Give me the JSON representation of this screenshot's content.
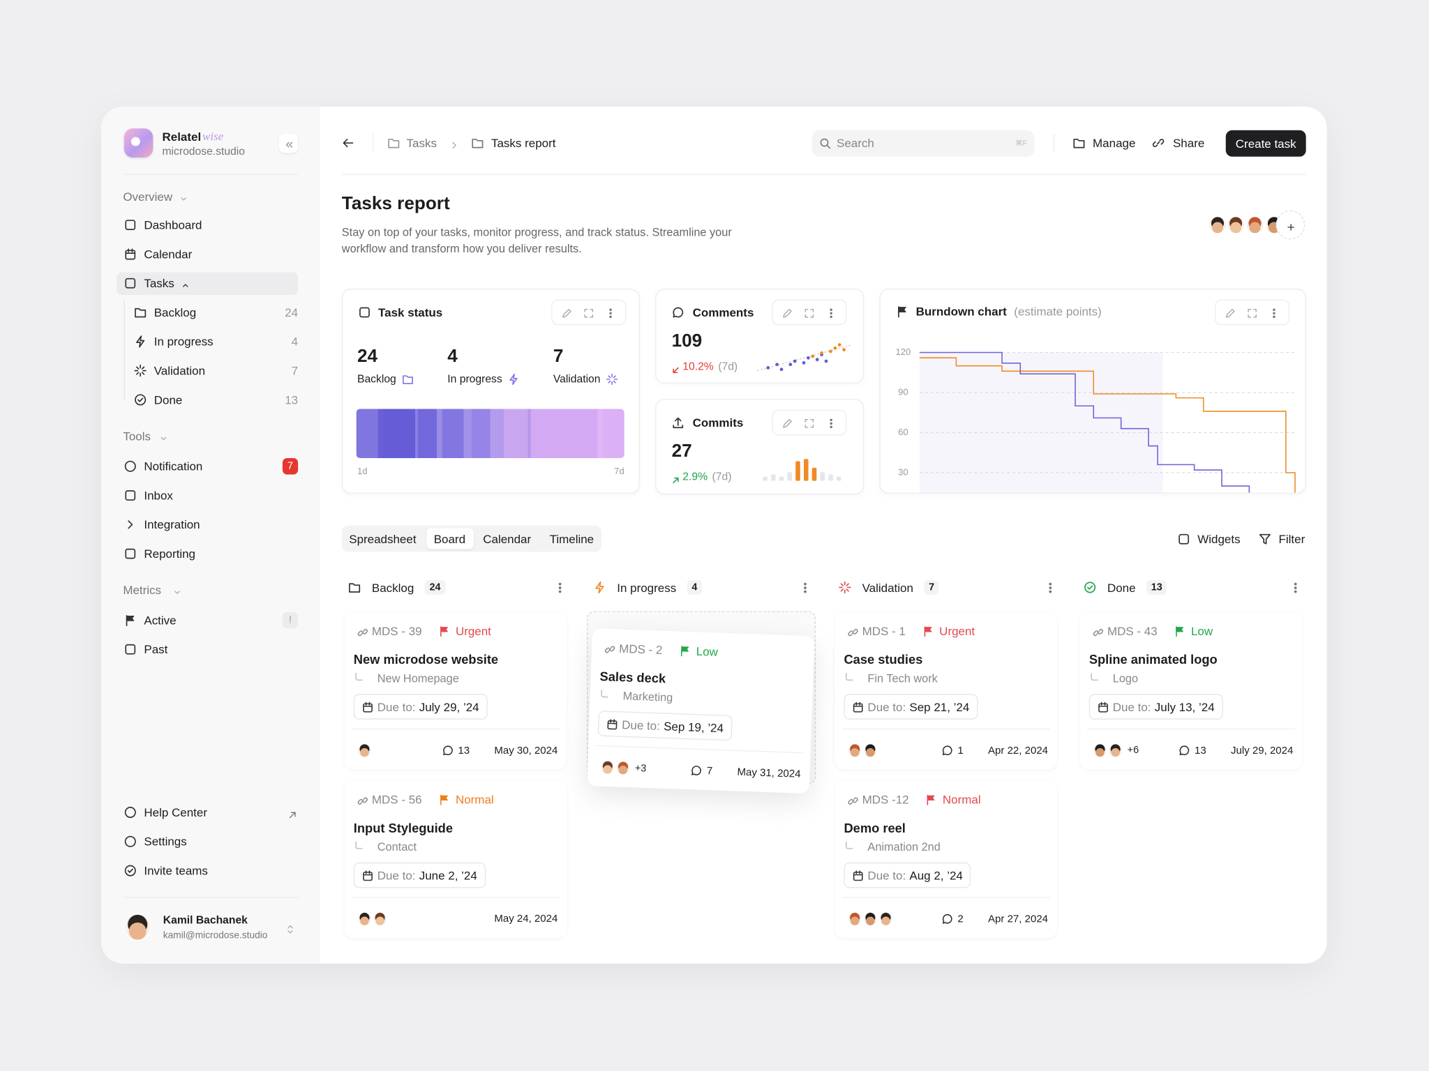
{
  "sidebar": {
    "brand": "Relatel",
    "brand_accent": "wise",
    "workspace": "microdose.studio",
    "overview": {
      "title": "Overview",
      "items": [
        {
          "label": "Dashboard"
        },
        {
          "label": "Calendar"
        },
        {
          "label": "Tasks",
          "active": true
        }
      ]
    },
    "tasks": [
      {
        "label": "Backlog",
        "count": 24
      },
      {
        "label": "In progress",
        "count": 4
      },
      {
        "label": "Validation",
        "count": 7
      },
      {
        "label": "Done",
        "count": 13
      }
    ],
    "tools": {
      "title": "Tools",
      "items": [
        {
          "label": "Notification",
          "badge": 7
        },
        {
          "label": "Inbox"
        },
        {
          "label": "Integration"
        },
        {
          "label": "Reporting"
        }
      ]
    },
    "metrics": {
      "title": "Metrics",
      "items": [
        {
          "label": "Active",
          "badge": "!"
        },
        {
          "label": "Past"
        }
      ]
    },
    "footer": [
      {
        "label": "Help Center"
      },
      {
        "label": "Settings"
      },
      {
        "label": "Invite teams"
      }
    ],
    "user": {
      "name": "Kamil Bachanek",
      "email": "kamil@microdose.studio"
    }
  },
  "topbar": {
    "breadcrumb": [
      "Tasks",
      "Tasks report"
    ],
    "search": "Search",
    "shortcut": "⌘F",
    "actions": [
      "Manage",
      "Share"
    ],
    "primary": "Create task"
  },
  "header": {
    "title": "Tasks report",
    "description": "Stay on top of your tasks, monitor progress, and track status. Streamline your workflow and transform how you deliver results."
  },
  "widgets": {
    "task_status": {
      "title": "Task status",
      "stats": [
        {
          "value": 24,
          "label": "Backlog"
        },
        {
          "value": 4,
          "label": "In progress"
        },
        {
          "value": 7,
          "label": "Validation"
        }
      ],
      "range": [
        "1d",
        "7d"
      ]
    },
    "comments": {
      "title": "Comments",
      "value": 109,
      "change": "10.2%",
      "period": "(7d)",
      "chart": {
        "type": "scatter",
        "xlim": [
          0,
          10
        ],
        "ylim": [
          0,
          10
        ],
        "series": [
          {
            "color": "#5b5bd6",
            "x": [
              1,
              2,
              2.5,
              3.5,
              4,
              5,
              5.5,
              6.5,
              7,
              7.5
            ],
            "values": [
              2,
              3,
              1.5,
              3,
              4,
              3.5,
              5,
              4.5,
              6,
              4
            ]
          },
          {
            "color": "#f08a24",
            "x": [
              6,
              7,
              8,
              8.5,
              9,
              9.5
            ],
            "values": [
              5.5,
              6.5,
              7,
              8,
              9,
              7.5
            ]
          }
        ]
      }
    },
    "commits": {
      "title": "Commits",
      "value": 27,
      "change": "2.9%",
      "period": "(7d)",
      "chart": {
        "type": "bar",
        "ylim": [
          0,
          10
        ],
        "values": [
          2,
          3,
          2,
          4,
          9,
          10,
          6,
          4,
          3,
          2
        ],
        "colors": [
          "#e6e6e9",
          "#e6e6e9",
          "#e6e6e9",
          "#e6e6e9",
          "#f08a24",
          "#f08a24",
          "#f08a24",
          "#e6e6e9",
          "#e6e6e9",
          "#e6e6e9"
        ]
      }
    },
    "burndown": {
      "title": "Burndown chart",
      "subtitle": "(estimate points)",
      "chart": {
        "type": "line",
        "step": true,
        "xlim": [
          0,
          41
        ],
        "ylim": [
          15,
          125
        ],
        "yticks": [
          30,
          60,
          90,
          120
        ],
        "grid": true,
        "series": [
          {
            "color": "#f08a24",
            "x": [
              0,
              4,
              9,
              19,
              28,
              31,
              40,
              41
            ],
            "values": [
              116,
              110,
              106,
              89,
              86,
              76,
              30,
              15
            ]
          },
          {
            "color": "#6b63d9",
            "x": [
              0,
              9,
              11,
              17,
              19,
              22,
              25,
              26,
              30,
              33,
              36
            ],
            "values": [
              120,
              112,
              104,
              80,
              71,
              63,
              50,
              36,
              32,
              20,
              15
            ]
          }
        ]
      }
    }
  },
  "view": {
    "tabs": [
      "Spreadsheet",
      "Board",
      "Calendar",
      "Timeline"
    ],
    "active_tab": 1,
    "tools": [
      "Widgets",
      "Filter"
    ]
  },
  "board": {
    "columns": [
      {
        "title": "Backlog",
        "count": 24,
        "cards": [
          {
            "id": "MDS - 39",
            "priority": "Urgent",
            "priority_color": "#e5484d",
            "title": "New microdose website",
            "project": "New Homepage",
            "due_label": "Due to:",
            "due": "July 29, ’24",
            "comments": 13,
            "date": "May 30, 2024"
          },
          {
            "id": "MDS - 56",
            "priority": "Normal",
            "priority_color": "#f07c1a",
            "title": "Input Styleguide",
            "project": "Contact",
            "due_label": "Due to:",
            "due": "June 2, ’24",
            "date": "May 24, 2024"
          }
        ]
      },
      {
        "title": "In progress",
        "count": 4,
        "cards": [
          {
            "id": "MDS - 2",
            "priority": "Low",
            "priority_color": "#22a84a",
            "title": "Sales deck",
            "project": "Marketing",
            "due_label": "Due to:",
            "due": "Sep 19, ’24",
            "extra": "+3",
            "comments": 7,
            "date": "May 31, 2024"
          }
        ]
      },
      {
        "title": "Validation",
        "count": 7,
        "cards": [
          {
            "id": "MDS - 1",
            "priority": "Urgent",
            "priority_color": "#e5484d",
            "title": "Case studies",
            "project": "Fin Tech work",
            "due_label": "Due to:",
            "due": "Sep 21, ’24",
            "comments": 1,
            "date": "Apr 22, 2024"
          },
          {
            "id": "MDS -12",
            "priority": "Normal",
            "priority_color": "#e5484d",
            "title": "Demo reel",
            "project": "Animation 2nd",
            "due_label": "Due to:",
            "due": "Aug 2, ’24",
            "comments": 2,
            "date": "Apr 27, 2024"
          }
        ]
      },
      {
        "title": "Done",
        "count": 13,
        "cards": [
          {
            "id": "MDS - 43",
            "priority": "Low",
            "priority_color": "#22a84a",
            "title": "Spline animated logo",
            "project": "Logo",
            "due_label": "Due to:",
            "due": "July 13, ’24",
            "extra": "+6",
            "comments": 13,
            "date": "July 29, 2024"
          }
        ]
      }
    ]
  }
}
